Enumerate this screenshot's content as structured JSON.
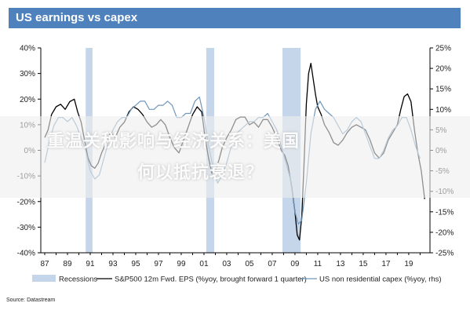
{
  "header": {
    "title": "US earnings vs capex"
  },
  "source": "Source: Datastream",
  "banner": {
    "line1": "重温关税影响与经济关系：美国",
    "line2": "何以抵抗衰退？"
  },
  "colors": {
    "header_bg": "#4f81bd",
    "recession": "#c5d6ea",
    "eps": "#000000",
    "capex": "#6f97ba"
  },
  "chart_data": {
    "type": "line",
    "title": "US earnings vs capex",
    "left_axis": {
      "ylim": [
        -40,
        40
      ],
      "ticks": [
        "-40%",
        "-30%",
        "-20%",
        "-10%",
        "0%",
        "10%",
        "20%",
        "30%",
        "40%"
      ]
    },
    "right_axis": {
      "ylim": [
        -25,
        25
      ],
      "ticks": [
        "-25%",
        "-20%",
        "-15%",
        "-10%",
        "-5%",
        "0%",
        "5%",
        "10%",
        "15%",
        "20%",
        "25%"
      ]
    },
    "x_ticks": [
      "87",
      "89",
      "91",
      "93",
      "95",
      "97",
      "99",
      "01",
      "03",
      "05",
      "07",
      "09",
      "11",
      "13",
      "15",
      "17",
      "19"
    ],
    "xlim": [
      1987,
      2020.8
    ],
    "grid": false,
    "legend_position": "bottom",
    "recessions": [
      [
        1990.6,
        1991.2
      ],
      [
        2001.2,
        2001.9
      ],
      [
        2007.9,
        2009.5
      ]
    ],
    "series": [
      {
        "name": "S&P500 12m Fwd. EPS (%yoy, brought forward 1 quarter)",
        "axis": "left",
        "x": [
          1987.0,
          1987.3,
          1987.6,
          1988.0,
          1988.4,
          1988.8,
          1989.2,
          1989.6,
          1989.9,
          1990.2,
          1990.5,
          1990.8,
          1991.1,
          1991.4,
          1991.7,
          1992.0,
          1992.4,
          1992.8,
          1993.2,
          1993.6,
          1994.0,
          1994.4,
          1994.8,
          1995.2,
          1995.6,
          1996.0,
          1996.4,
          1996.8,
          1997.2,
          1997.6,
          1998.0,
          1998.4,
          1998.8,
          1999.2,
          1999.6,
          2000.0,
          2000.4,
          2000.8,
          2001.1,
          2001.4,
          2001.7,
          2002.0,
          2002.3,
          2002.6,
          2003.0,
          2003.4,
          2003.8,
          2004.2,
          2004.6,
          2005.0,
          2005.4,
          2005.8,
          2006.2,
          2006.6,
          2007.0,
          2007.4,
          2007.8,
          2008.1,
          2008.4,
          2008.7,
          2009.0,
          2009.2,
          2009.4,
          2009.6,
          2009.8,
          2010.0,
          2010.2,
          2010.4,
          2010.6,
          2010.8,
          2011.0,
          2011.3,
          2011.6,
          2012.0,
          2012.4,
          2012.8,
          2013.2,
          2013.6,
          2014.0,
          2014.4,
          2014.8,
          2015.2,
          2015.6,
          2016.0,
          2016.4,
          2016.8,
          2017.2,
          2017.6,
          2018.0,
          2018.3,
          2018.6,
          2018.9,
          2019.2,
          2019.5,
          2019.8,
          2020.1,
          2020.4
        ],
        "y": [
          5,
          8,
          14,
          17,
          18,
          16,
          19,
          20,
          15,
          11,
          4,
          -3,
          -6,
          -7,
          -5,
          -1,
          3,
          7,
          5,
          9,
          11,
          15,
          17,
          16,
          14,
          11,
          9,
          10,
          12,
          10,
          5,
          1,
          -1,
          4,
          9,
          14,
          17,
          15,
          5,
          -3,
          -9,
          -8,
          -4,
          1,
          5,
          8,
          12,
          13,
          13,
          10,
          11,
          9,
          12,
          12,
          9,
          5,
          0,
          -2,
          -6,
          -14,
          -24,
          -33,
          -35,
          -26,
          -5,
          18,
          30,
          34,
          28,
          22,
          17,
          14,
          10,
          7,
          3,
          2,
          4,
          7,
          9,
          10,
          9,
          8,
          4,
          -1,
          -3,
          -1,
          4,
          7,
          10,
          16,
          21,
          22,
          19,
          8,
          -1,
          -8,
          -19
        ]
      },
      {
        "name": "US non residential capex (%yoy, rhs)",
        "axis": "right",
        "x": [
          1987.0,
          1987.4,
          1987.8,
          1988.2,
          1988.6,
          1989.0,
          1989.4,
          1989.8,
          1990.2,
          1990.6,
          1991.0,
          1991.4,
          1991.8,
          1992.2,
          1992.6,
          1993.0,
          1993.4,
          1993.8,
          1994.2,
          1994.6,
          1995.0,
          1995.4,
          1995.8,
          1996.2,
          1996.6,
          1997.0,
          1997.4,
          1997.8,
          1998.2,
          1998.6,
          1999.0,
          1999.4,
          1999.8,
          2000.2,
          2000.6,
          2001.0,
          2001.4,
          2001.8,
          2002.2,
          2002.6,
          2003.0,
          2003.4,
          2003.8,
          2004.2,
          2004.6,
          2005.0,
          2005.4,
          2005.8,
          2006.2,
          2006.6,
          2007.0,
          2007.4,
          2007.8,
          2008.2,
          2008.6,
          2009.0,
          2009.3,
          2009.6,
          2010.0,
          2010.4,
          2010.8,
          2011.2,
          2011.6,
          2012.0,
          2012.4,
          2012.8,
          2013.2,
          2013.6,
          2014.0,
          2014.4,
          2014.8,
          2015.2,
          2015.6,
          2016.0,
          2016.4,
          2016.8,
          2017.2,
          2017.6,
          2018.0,
          2018.4,
          2018.8,
          2019.2,
          2019.6,
          2020.0
        ],
        "y": [
          -3,
          2,
          6,
          8,
          8,
          7,
          8,
          6,
          3,
          0,
          -5,
          -7,
          -6,
          -2,
          2,
          5,
          7,
          8,
          8,
          10,
          11,
          12,
          12,
          10,
          10,
          11,
          11,
          12,
          11,
          8,
          8,
          9,
          9,
          12,
          13,
          8,
          1,
          -4,
          -8,
          -6,
          -3,
          1,
          4,
          5,
          6,
          7,
          7,
          8,
          8,
          9,
          7,
          5,
          1,
          -3,
          -7,
          -15,
          -18,
          -17,
          -8,
          4,
          10,
          12,
          10,
          9,
          8,
          6,
          4,
          5,
          7,
          8,
          7,
          4,
          1,
          -2,
          -2,
          0,
          3,
          5,
          6,
          8,
          8,
          5,
          1,
          -2
        ]
      }
    ],
    "legend": [
      {
        "label": "Recessions",
        "kind": "area"
      },
      {
        "label": "S&P500 12m Fwd. EPS (%yoy, brought forward 1 quarter)",
        "kind": "line"
      },
      {
        "label": "US non residential capex (%yoy, rhs)",
        "kind": "line"
      }
    ]
  }
}
